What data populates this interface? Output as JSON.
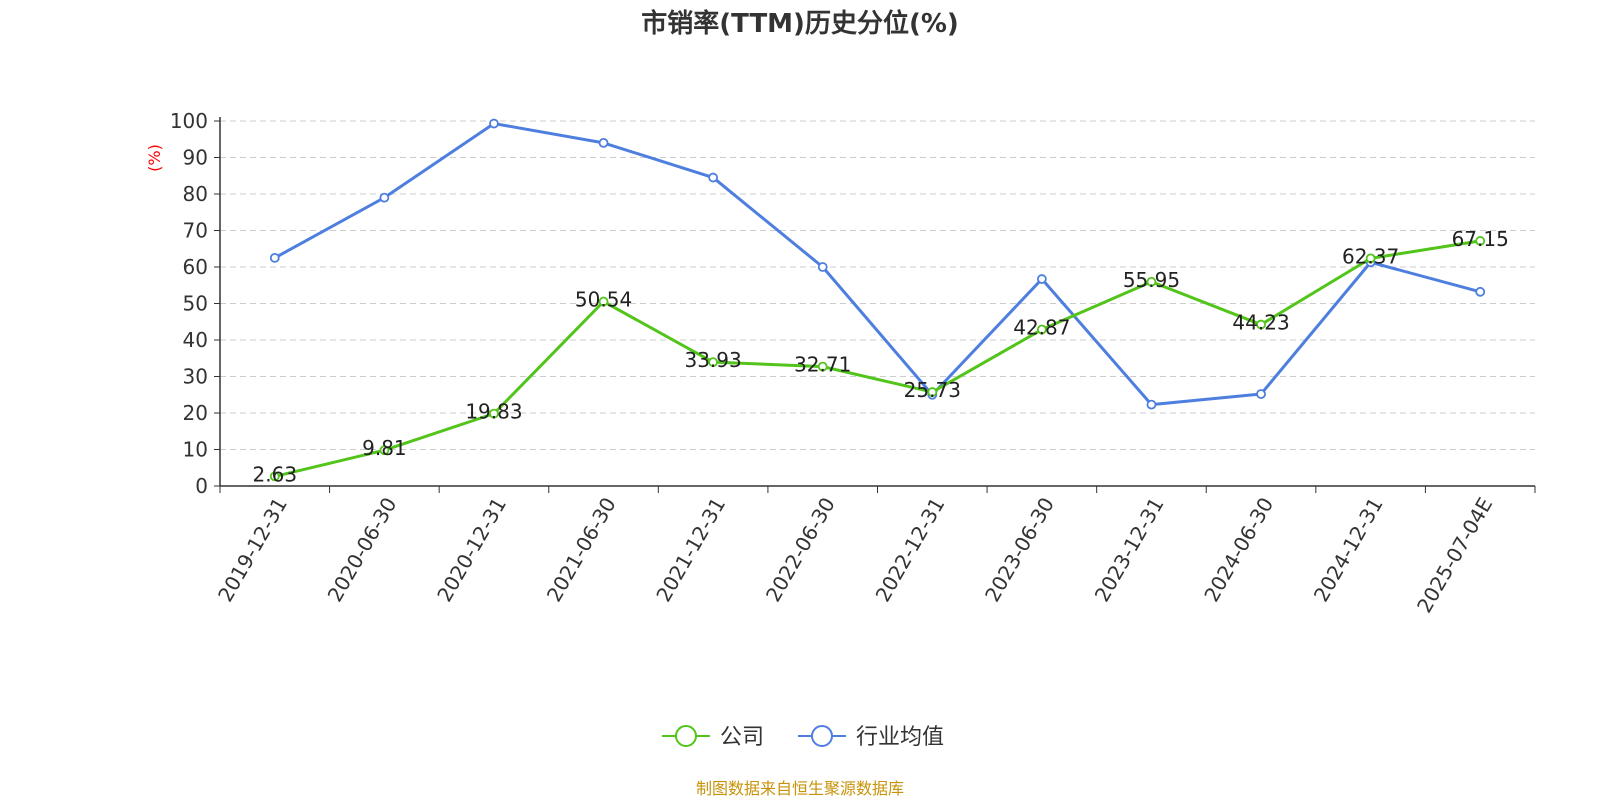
{
  "chart_data": {
    "type": "line",
    "title": "市销率(TTM)历史分位(%)",
    "ylabel": "(%)",
    "ylim": [
      0,
      100
    ],
    "yticks": [
      "0",
      "10",
      "20",
      "30",
      "40",
      "50",
      "60",
      "70",
      "80",
      "90",
      "100"
    ],
    "categories": [
      "2019-12-31",
      "2020-06-30",
      "2020-12-31",
      "2021-06-30",
      "2021-12-31",
      "2022-06-30",
      "2022-12-31",
      "2023-06-30",
      "2023-12-31",
      "2024-06-30",
      "2024-12-31",
      "2025-07-04E"
    ],
    "series": [
      {
        "name": "公司",
        "color": "#52c41a",
        "values": [
          2.63,
          9.81,
          19.83,
          50.54,
          33.93,
          32.71,
          25.73,
          42.87,
          55.95,
          44.23,
          62.37,
          67.15
        ],
        "labels": [
          "2.63",
          "9.81",
          "19.83",
          "50.54",
          "33.93",
          "32.71",
          "25.73",
          "42.87",
          "55.95",
          "44.23",
          "62.37",
          "67.15"
        ]
      },
      {
        "name": "行业均值",
        "color": "#4e7fdf",
        "values": [
          62.5,
          79.0,
          99.3,
          94.0,
          84.5,
          60.0,
          25.0,
          56.7,
          22.3,
          25.2,
          61.3,
          53.2
        ]
      }
    ],
    "grid": true,
    "legend_position": "bottom-center"
  },
  "source_text": "制图数据来自恒生聚源数据库"
}
